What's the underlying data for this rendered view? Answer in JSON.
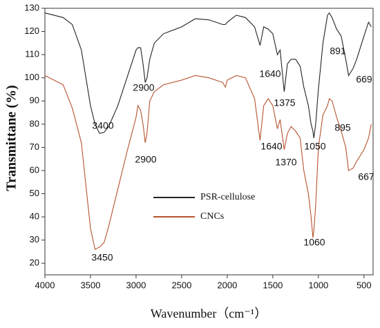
{
  "chart_data": {
    "type": "line",
    "xlabel": "Wavenumber（cm⁻¹）",
    "ylabel": "Transmittane (%)",
    "xlim": [
      4000,
      400
    ],
    "xticks": [
      4000,
      3500,
      3000,
      2500,
      2000,
      1500,
      1000,
      500
    ],
    "ylim": [
      15,
      130
    ],
    "yticks": [
      20,
      30,
      40,
      50,
      60,
      70,
      80,
      90,
      100,
      110,
      120,
      130
    ],
    "legend": "center",
    "x": [
      4000,
      3800,
      3700,
      3600,
      3500,
      3450,
      3400,
      3350,
      3300,
      3200,
      3100,
      3000,
      2980,
      2950,
      2920,
      2900,
      2880,
      2850,
      2800,
      2700,
      2500,
      2350,
      2200,
      2050,
      2020,
      2000,
      1900,
      1800,
      1700,
      1640,
      1600,
      1550,
      1500,
      1450,
      1420,
      1375,
      1340,
      1300,
      1250,
      1200,
      1160,
      1110,
      1080,
      1060,
      1050,
      1030,
      1000,
      950,
      900,
      880,
      850,
      800,
      750,
      700,
      669,
      620,
      580,
      500,
      450,
      420
    ],
    "series": [
      {
        "name": "PSR-cellulose",
        "color": "#222222",
        "values": [
          128,
          126,
          123,
          112,
          88,
          80,
          76,
          76.5,
          79,
          88,
          100,
          112,
          113,
          113,
          105,
          98,
          100,
          108,
          115,
          119,
          122,
          125.5,
          125,
          123,
          123,
          124,
          127,
          126,
          122,
          114,
          122,
          121,
          119,
          110,
          112,
          94,
          106,
          108,
          108,
          105,
          96,
          88,
          80,
          77,
          74,
          80,
          95,
          115,
          127,
          128,
          126,
          121,
          118,
          108,
          101,
          104,
          108,
          118,
          124,
          122
        ]
      },
      {
        "name": "CNCs",
        "color": "#b5532f",
        "values": [
          101,
          97,
          87,
          72,
          35,
          26,
          27,
          29,
          36,
          52,
          68,
          83,
          88,
          86,
          79,
          72,
          76,
          90,
          94,
          97,
          99,
          101,
          100,
          98,
          96,
          99,
          101,
          100,
          91,
          73,
          88,
          91,
          88,
          78,
          82,
          69,
          76,
          79,
          77,
          74,
          60,
          50,
          40,
          31,
          34,
          45,
          70,
          84,
          88,
          91,
          90,
          83,
          77,
          70,
          60,
          61,
          64,
          69,
          74,
          80
        ]
      }
    ],
    "annotations": [
      "2900",
      "1640",
      "891",
      "669",
      "3400",
      "1375",
      "2900",
      "1640",
      "895",
      "1050",
      "1370",
      "667",
      "1060",
      "3450"
    ]
  }
}
